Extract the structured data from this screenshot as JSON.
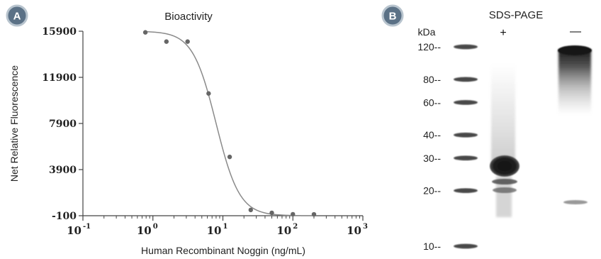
{
  "panel_a": {
    "badge": "A",
    "chart_data": {
      "type": "scatter",
      "title": "Bioactivity",
      "xlabel": "Human Recombinant Noggin (ng/mL)",
      "ylabel": "Net Relative Fluorescence",
      "xscale": "log",
      "xlim": [
        0.1,
        1000
      ],
      "ylim": [
        -100,
        15900
      ],
      "yticks": [
        "15900",
        "11900",
        "7900",
        "3900",
        "-100"
      ],
      "xticks": [
        {
          "base": "10",
          "exp": "-1"
        },
        {
          "base": "10",
          "exp": "0"
        },
        {
          "base": "10",
          "exp": "1"
        },
        {
          "base": "10",
          "exp": "2"
        },
        {
          "base": "10",
          "exp": "3"
        }
      ],
      "x": [
        0.78,
        1.56,
        3.13,
        6.25,
        12.5,
        25,
        50,
        100,
        200
      ],
      "y": [
        15800,
        15000,
        15000,
        10500,
        5000,
        400,
        150,
        30,
        20
      ],
      "fit": {
        "top": 15900,
        "bottom": -100,
        "ec50": 8,
        "hill": 2.6
      },
      "point_color": "#666666",
      "curve_color": "#8a8a8a"
    }
  },
  "panel_b": {
    "badge": "B",
    "title": "SDS-PAGE",
    "unit_label": "kDa",
    "lanes": [
      "+",
      "—"
    ],
    "markers": [
      {
        "label": "120--",
        "kda": 120
      },
      {
        "label": "80--",
        "kda": 80
      },
      {
        "label": "60--",
        "kda": 60
      },
      {
        "label": "40--",
        "kda": 40
      },
      {
        "label": "30--",
        "kda": 30
      },
      {
        "label": "20--",
        "kda": 20
      },
      {
        "label": "10--",
        "kda": 10
      }
    ]
  },
  "colors": {
    "badge_fill": "#5b7186",
    "badge_stroke": "#b8c4ce",
    "band": "#1c1c1c",
    "gel_background": "#ffffff"
  }
}
